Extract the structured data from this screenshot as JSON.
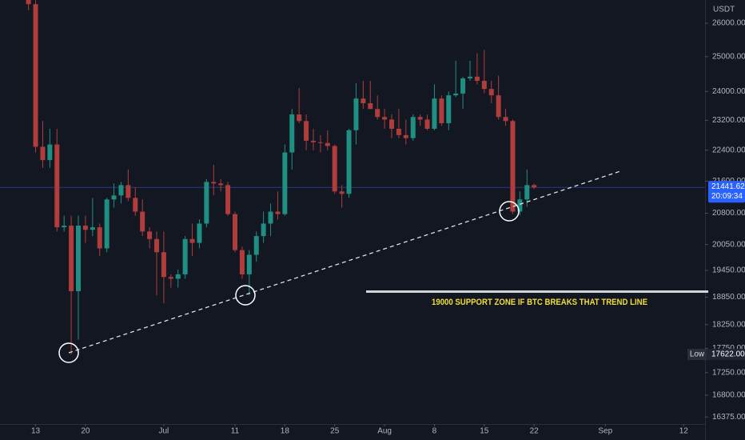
{
  "chart_data": {
    "type": "candlestick",
    "y_unit": "USDT",
    "yscale": "log",
    "grid": false,
    "up_color": "#1f8f83",
    "down_color": "#b03d3b",
    "ylim": [
      16240,
      26720
    ],
    "yticks": [
      {
        "value": 26000,
        "label": "26000.00"
      },
      {
        "value": 25000,
        "label": "25000.00"
      },
      {
        "value": 24000,
        "label": "24000.00"
      },
      {
        "value": 23200,
        "label": "23200.00"
      },
      {
        "value": 22400,
        "label": "22400.00"
      },
      {
        "value": 21600,
        "label": "21600.00"
      },
      {
        "value": 20800,
        "label": "20800.00"
      },
      {
        "value": 20050,
        "label": "20050.00"
      },
      {
        "value": 19450,
        "label": "19450.00"
      },
      {
        "value": 18850,
        "label": "18850.00"
      },
      {
        "value": 18250,
        "label": "18250.00"
      },
      {
        "value": 17750,
        "label": "17750.00"
      },
      {
        "value": 17250,
        "label": "17250.00"
      },
      {
        "value": 16800,
        "label": "16800.00"
      },
      {
        "value": 16375,
        "label": "16375.00"
      }
    ],
    "xlim": [
      "06-08",
      "09-15"
    ],
    "xticks": [
      {
        "value": "06-13",
        "label": "13"
      },
      {
        "value": "06-20",
        "label": "20"
      },
      {
        "value": "07-01",
        "label": "Jul"
      },
      {
        "value": "07-11",
        "label": "11"
      },
      {
        "value": "07-18",
        "label": "18"
      },
      {
        "value": "07-25",
        "label": "25"
      },
      {
        "value": "08-01",
        "label": "Aug"
      },
      {
        "value": "08-08",
        "label": "8"
      },
      {
        "value": "08-15",
        "label": "15"
      },
      {
        "value": "08-22",
        "label": "22"
      },
      {
        "value": "09-01",
        "label": "Sep"
      },
      {
        "value": "09-12",
        "label": "12"
      }
    ],
    "x": [
      "06-12",
      "06-13",
      "06-14",
      "06-15",
      "06-16",
      "06-17",
      "06-18",
      "06-19",
      "06-20",
      "06-21",
      "06-22",
      "06-23",
      "06-24",
      "06-25",
      "06-26",
      "06-27",
      "06-28",
      "06-29",
      "06-30",
      "07-01",
      "07-02",
      "07-03",
      "07-04",
      "07-05",
      "07-06",
      "07-07",
      "07-08",
      "07-09",
      "07-10",
      "07-11",
      "07-12",
      "07-13",
      "07-14",
      "07-15",
      "07-16",
      "07-17",
      "07-18",
      "07-19",
      "07-20",
      "07-21",
      "07-22",
      "07-23",
      "07-24",
      "07-25",
      "07-26",
      "07-27",
      "07-28",
      "07-29",
      "07-30",
      "07-31",
      "08-01",
      "08-02",
      "08-03",
      "08-04",
      "08-05",
      "08-06",
      "08-07",
      "08-08",
      "08-09",
      "08-10",
      "08-11",
      "08-12",
      "08-13",
      "08-14",
      "08-15",
      "08-16",
      "08-17",
      "08-18",
      "08-19",
      "08-20",
      "08-21",
      "08-22"
    ],
    "open": [
      26900,
      26590,
      22490,
      22140,
      22550,
      20460,
      20500,
      18980,
      20500,
      20400,
      20460,
      19960,
      21140,
      21240,
      21500,
      21180,
      20840,
      20360,
      20180,
      19870,
      19300,
      19260,
      19360,
      20180,
      20090,
      20550,
      21580,
      21540,
      21500,
      20780,
      19920,
      19360,
      19810,
      20250,
      20550,
      20840,
      20780,
      22340,
      23360,
      23180,
      22650,
      22610,
      22590,
      22510,
      21340,
      21280,
      22930,
      23800,
      23670,
      23510,
      23290,
      23220,
      22970,
      22800,
      22720,
      23290,
      23220,
      22970,
      23800,
      23120,
      23890,
      23940,
      24370,
      24420,
      24300,
      24070,
      23890,
      23290,
      23180,
      20840,
      21140,
      21500
    ],
    "high": [
      27100,
      26710,
      23180,
      22970,
      22970,
      20740,
      20740,
      20740,
      20740,
      21180,
      20550,
      21180,
      21540,
      21580,
      21900,
      21440,
      21140,
      20460,
      20360,
      20360,
      19360,
      19470,
      20250,
      20550,
      20650,
      21650,
      22020,
      21650,
      21580,
      20840,
      20000,
      19920,
      20360,
      20840,
      21040,
      21340,
      22550,
      23510,
      24100,
      23360,
      22970,
      22800,
      22930,
      22550,
      21500,
      22970,
      24230,
      24300,
      24300,
      23890,
      23510,
      23360,
      23510,
      23220,
      23360,
      23360,
      23360,
      24200,
      23890,
      24000,
      24880,
      24420,
      24880,
      25100,
      25200,
      24300,
      24450,
      23510,
      23220,
      21340,
      21900,
      21540
    ],
    "low": [
      26400,
      22340,
      21940,
      21940,
      20360,
      20360,
      17622,
      17930,
      20090,
      20250,
      19780,
      19870,
      20940,
      21040,
      21100,
      20740,
      20250,
      19960,
      18890,
      18710,
      19060,
      19060,
      19260,
      19780,
      19960,
      20460,
      21240,
      21340,
      20740,
      19870,
      19260,
      18890,
      19650,
      20090,
      20250,
      20650,
      20740,
      21900,
      23120,
      22400,
      22400,
      22340,
      22400,
      21280,
      20940,
      21180,
      22550,
      23510,
      23510,
      23220,
      22970,
      22720,
      22720,
      22550,
      22650,
      23050,
      22930,
      22930,
      23050,
      22930,
      23840,
      23510,
      24300,
      24200,
      23950,
      23670,
      23220,
      23050,
      20780,
      20750,
      20960,
      21400
    ],
    "close": [
      26590,
      22490,
      22140,
      22550,
      20460,
      20500,
      18980,
      20500,
      20400,
      20460,
      19960,
      21140,
      21240,
      21500,
      21180,
      20840,
      20360,
      20180,
      19870,
      19300,
      19260,
      19360,
      20180,
      20090,
      20550,
      21580,
      21540,
      21500,
      20780,
      19920,
      19360,
      19810,
      20250,
      20550,
      20840,
      20780,
      22340,
      23360,
      23180,
      22650,
      22610,
      22590,
      22510,
      21340,
      21280,
      22930,
      23800,
      23670,
      23510,
      23290,
      23220,
      22970,
      22800,
      22720,
      23290,
      23220,
      22970,
      23800,
      23120,
      23890,
      23940,
      24370,
      24420,
      24300,
      24070,
      23890,
      23290,
      23180,
      20840,
      21140,
      21500,
      21441.62
    ],
    "countdown": "20:09:34",
    "low_marker": {
      "label": "Low",
      "value": 17622,
      "value_label": "17622.00"
    },
    "annotation": "19000 SUPPORT ZONE IF BTC BREAKS THAT TREND LINE"
  }
}
